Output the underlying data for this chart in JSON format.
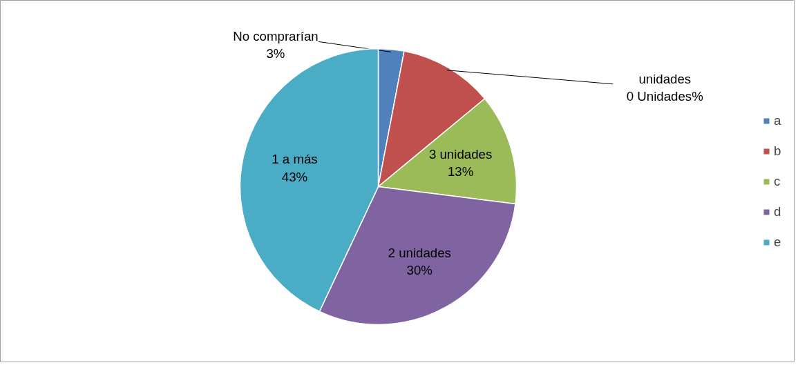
{
  "chart_data": {
    "type": "pie",
    "categories": [
      "a",
      "b",
      "c",
      "d",
      "e"
    ],
    "values": [
      3,
      11,
      13,
      30,
      43
    ],
    "colors": [
      "#4f81bd",
      "#c0504d",
      "#9bbb59",
      "#8064a2",
      "#4bacc6"
    ],
    "value_labels": [
      "No comprarían\n3%",
      "unidades\n0 Unidades%",
      "3 unidades\n13%",
      "2 unidades\n30%",
      "1 a más\n43%"
    ],
    "legend": "right"
  }
}
